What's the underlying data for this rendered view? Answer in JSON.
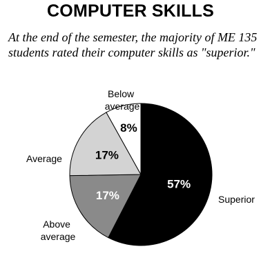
{
  "chart_data": {
    "type": "pie",
    "title": "COMPUTER SKILLS",
    "subtitle": "At the end of the semester, the majority of ME 135 students rated their computer skills as \"superior.\"",
    "categories": [
      "Superior",
      "Above average",
      "Average",
      "Below average"
    ],
    "values": [
      57,
      17,
      17,
      8
    ],
    "value_labels": [
      "57%",
      "17%",
      "17%",
      "8%"
    ],
    "colors": [
      "#000000",
      "#8a8a8a",
      "#d3d3d3",
      "#ffffff"
    ],
    "label_colors": [
      "#ffffff",
      "#ffffff",
      "#000000",
      "#000000"
    ],
    "start_angle_deg": 0,
    "direction": "clockwise"
  }
}
